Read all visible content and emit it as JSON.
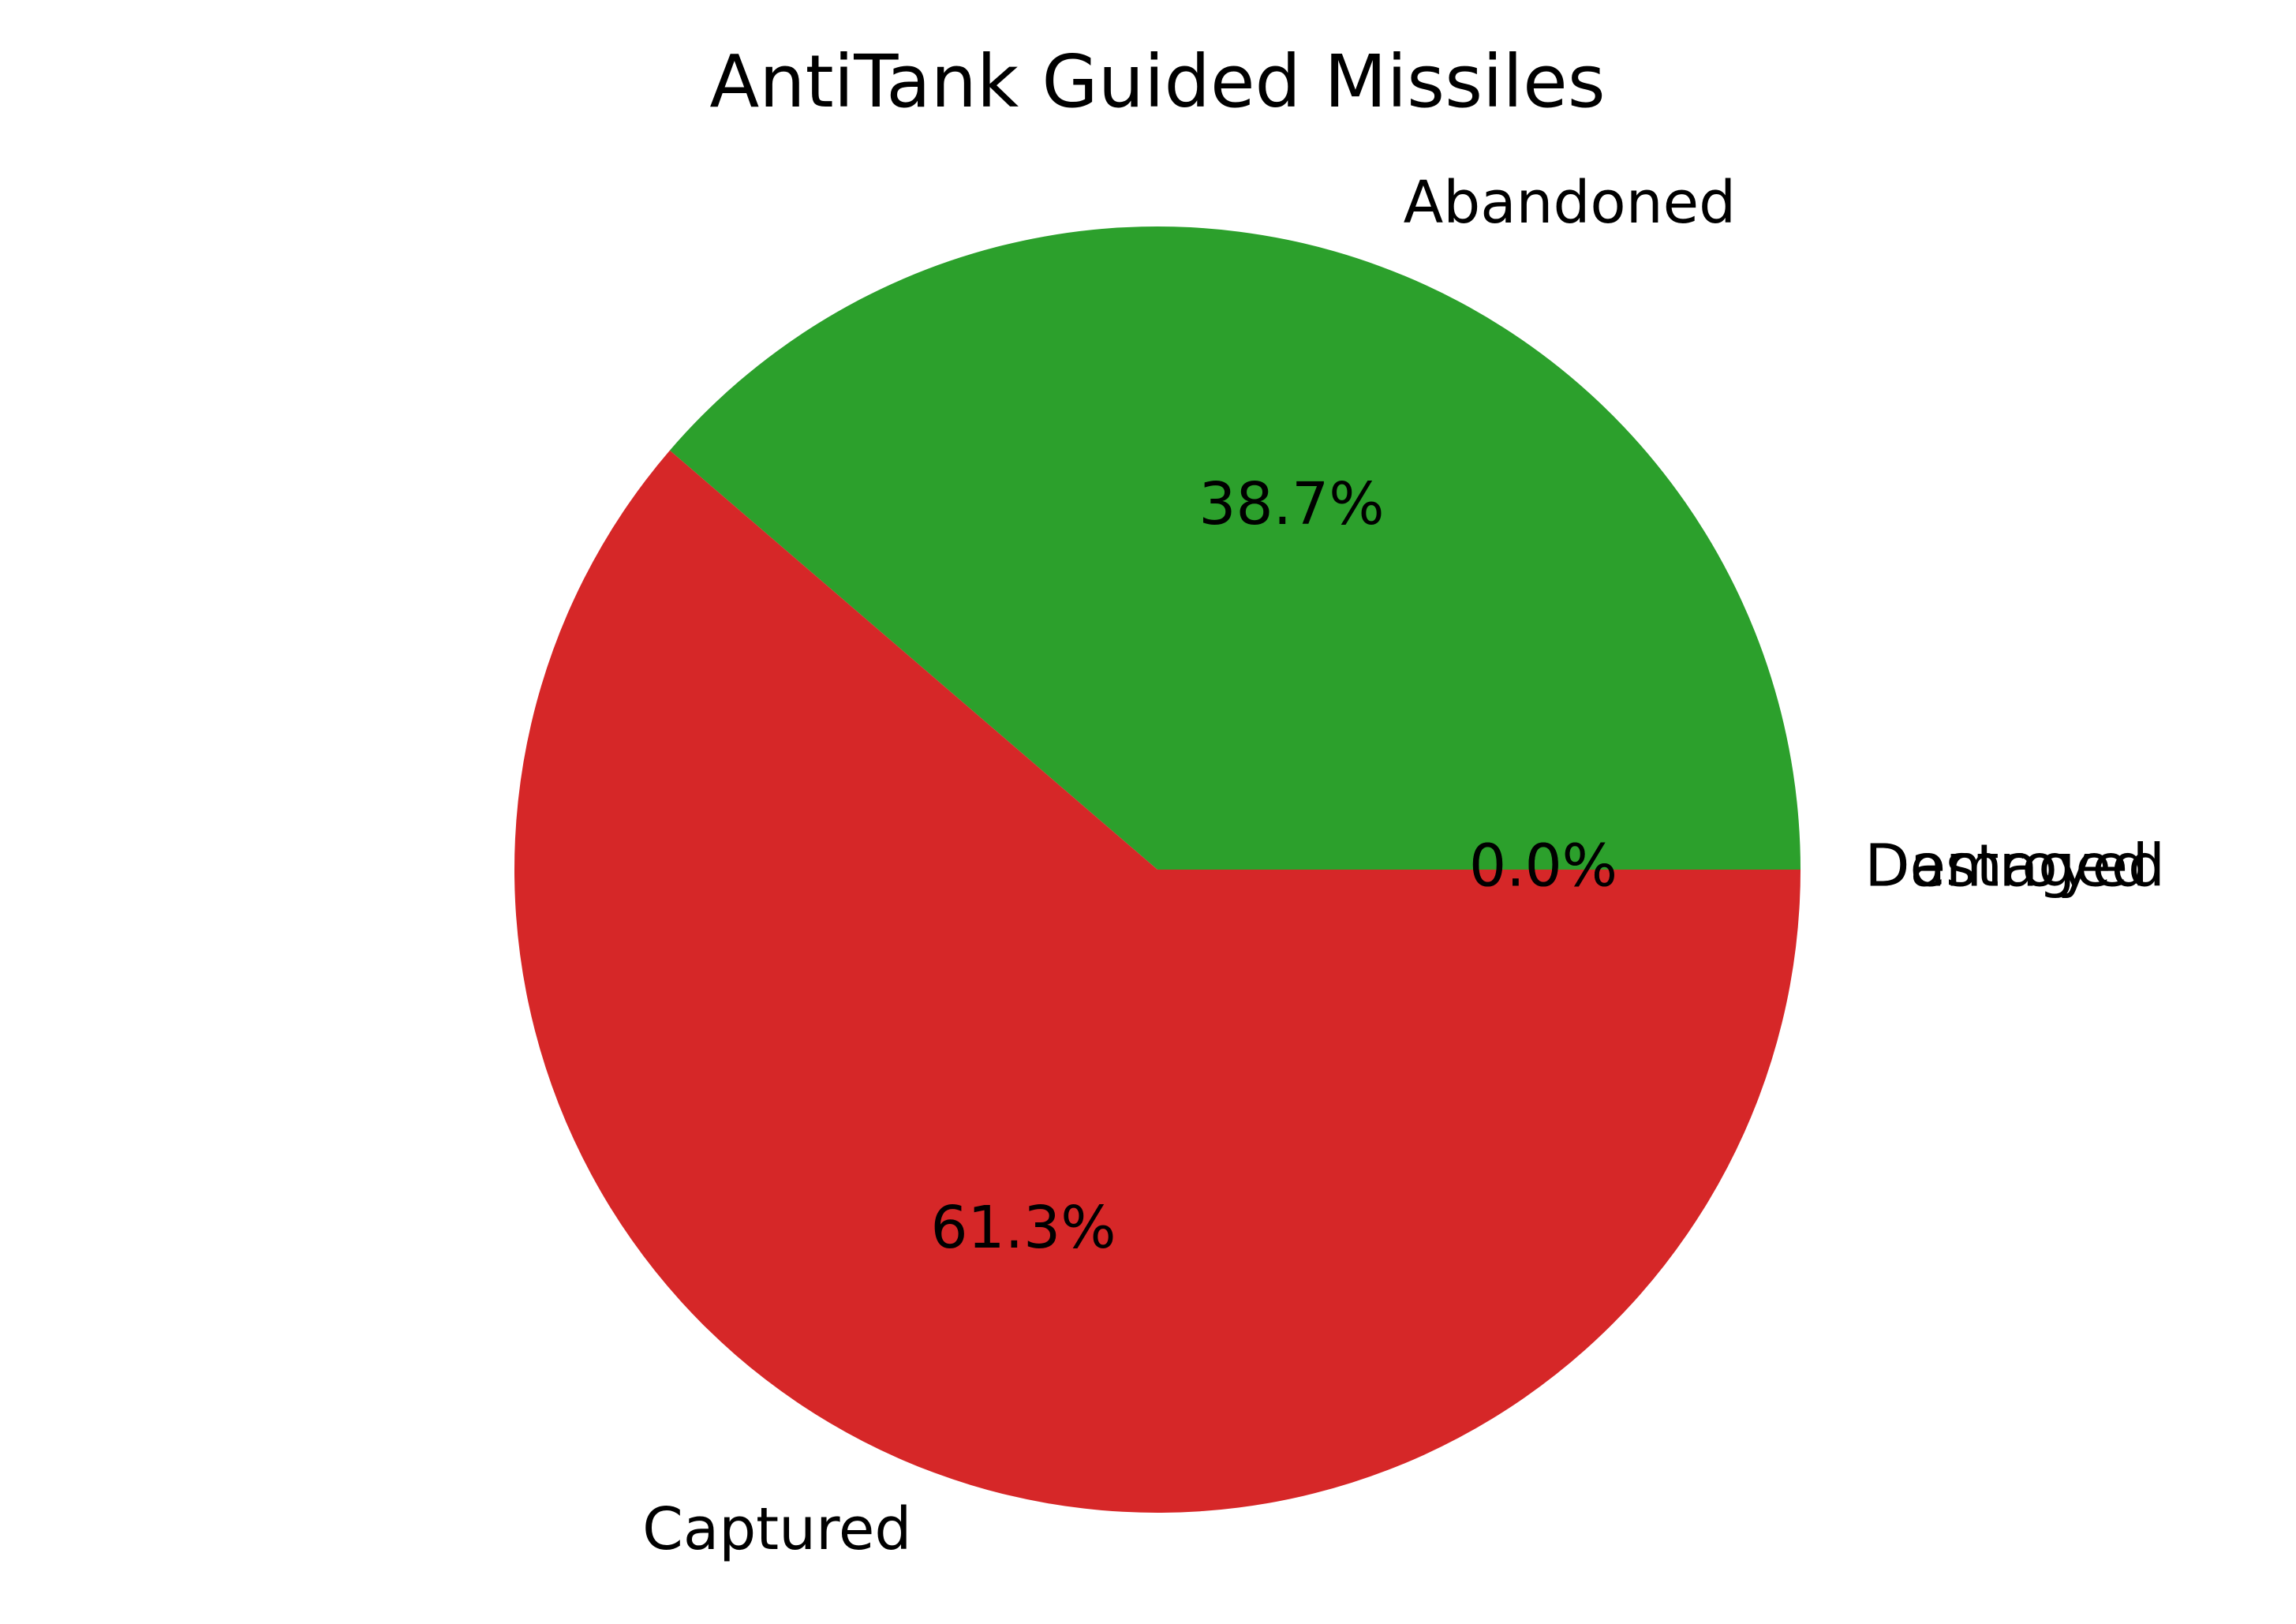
{
  "chart_data": {
    "type": "pie",
    "title": "AntiTank Guided Missiles",
    "start_angle_deg": 0,
    "direction": "counterclockwise",
    "slices": [
      {
        "label": "Destroyed",
        "value": 0.0,
        "percent_label": "0.0%",
        "color": "#1f77b4"
      },
      {
        "label": "Damaged",
        "value": 0.0,
        "percent_label": "0.0%",
        "color": "#ff7f0e"
      },
      {
        "label": "Abandoned",
        "value": 38.7,
        "percent_label": "38.7%",
        "color": "#2ca02c"
      },
      {
        "label": "Captured",
        "value": 61.3,
        "percent_label": "61.3%",
        "color": "#d62728"
      }
    ]
  }
}
